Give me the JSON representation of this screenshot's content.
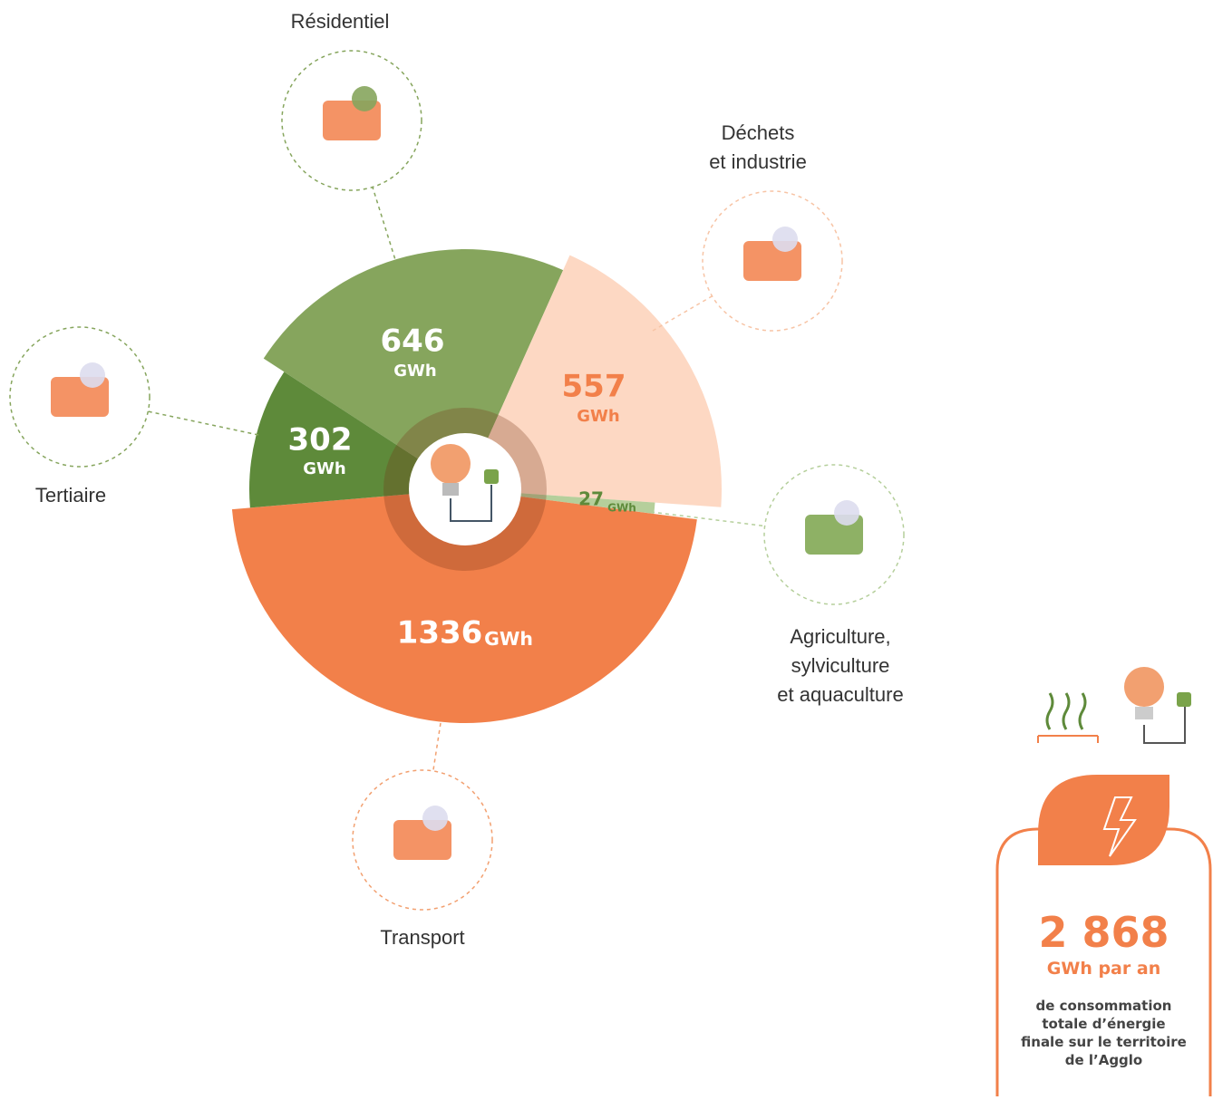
{
  "chart_data": {
    "type": "polar",
    "categories": [
      "Résidentiel",
      "Déchets\net industrie",
      "Agriculture,\nsylviculture\net aquaculture",
      "Transport",
      "Tertiaire"
    ],
    "values": [
      646,
      557,
      27,
      1336,
      302
    ],
    "unit": "GWh",
    "colors": [
      "#86a55d",
      "#fdd8c3",
      "#b5cf9b",
      "#f2804a",
      "#5e8a3a"
    ]
  },
  "summary": {
    "total": "2 868",
    "unit": "GWh par an",
    "description": "de consommation\ntotale d’énergie\nfinale sur le territoire\nde l’Agglo"
  }
}
